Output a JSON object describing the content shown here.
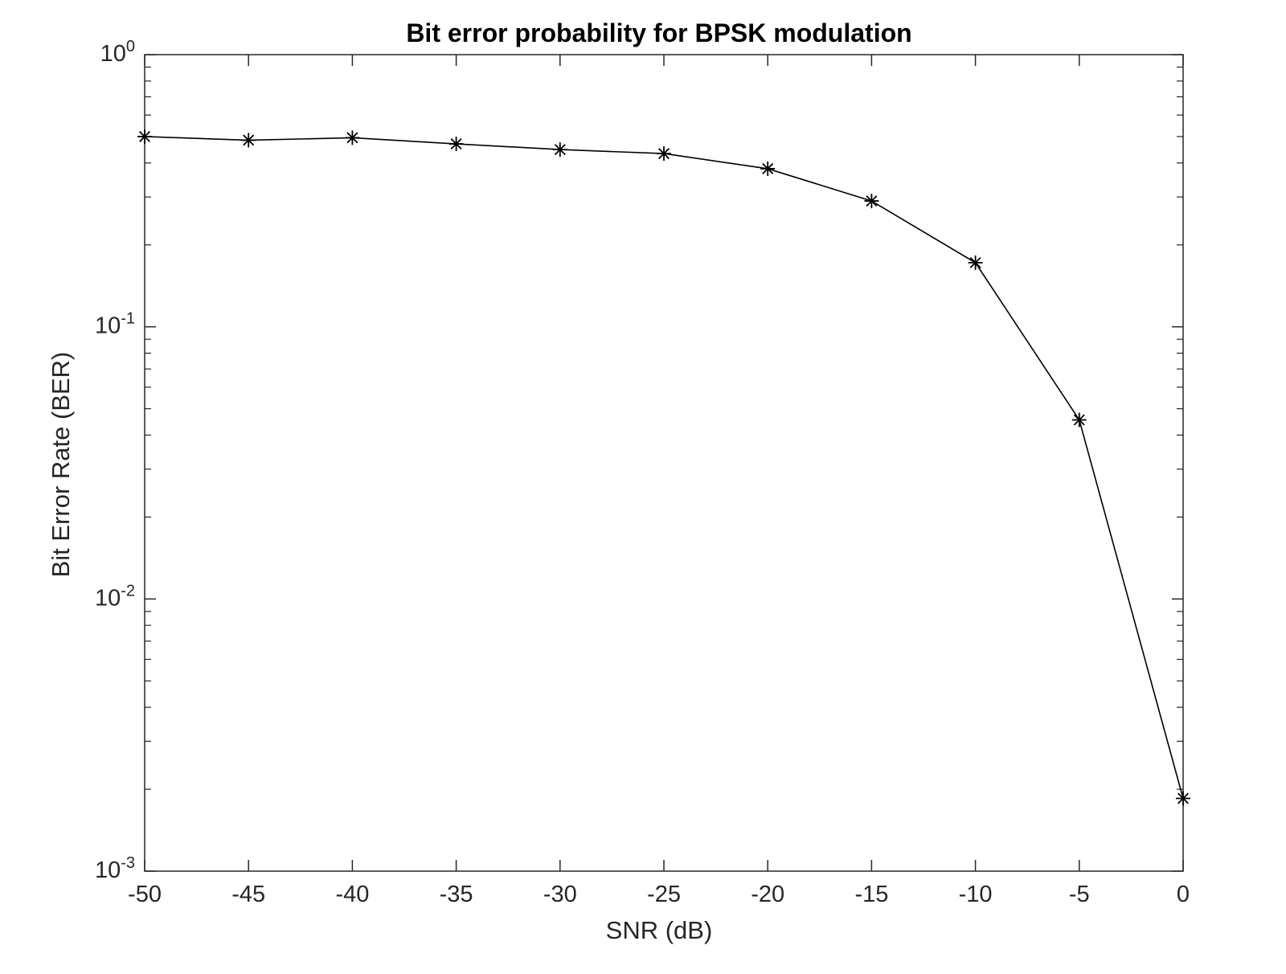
{
  "chart_data": {
    "type": "line",
    "title": "Bit error probability for BPSK modulation",
    "xlabel": "SNR (dB)",
    "ylabel": "Bit Error Rate (BER)",
    "xlim": [
      -50,
      0
    ],
    "ylim": [
      0.001,
      1
    ],
    "yscale": "log",
    "grid": false,
    "marker": "asterisk",
    "line_color": "#000000",
    "x_ticks": [
      "-50",
      "-45",
      "-40",
      "-35",
      "-30",
      "-25",
      "-20",
      "-15",
      "-10",
      "-5",
      "0"
    ],
    "y_ticks": [
      {
        "base": "10",
        "exp": "0"
      },
      {
        "base": "10",
        "exp": "-1"
      },
      {
        "base": "10",
        "exp": "-2"
      },
      {
        "base": "10",
        "exp": "-3"
      }
    ],
    "x": [
      -50,
      -45,
      -40,
      -35,
      -30,
      -25,
      -20,
      -15,
      -10,
      -5,
      0
    ],
    "values": [
      0.5,
      0.485,
      0.495,
      0.47,
      0.448,
      0.433,
      0.381,
      0.29,
      0.172,
      0.0455,
      0.00185
    ]
  }
}
